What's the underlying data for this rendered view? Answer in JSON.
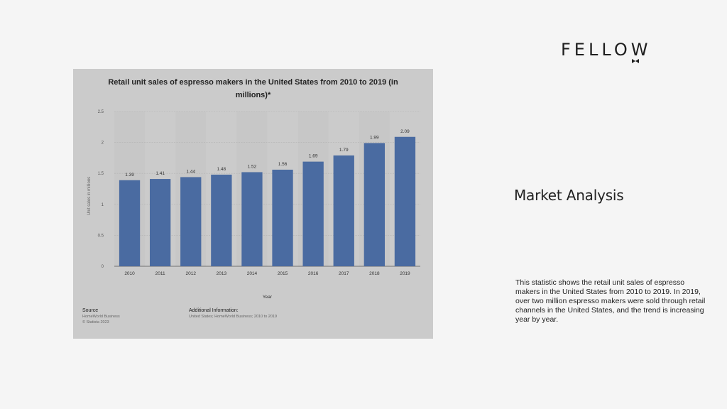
{
  "brand": {
    "name": "FELLOW"
  },
  "chart_data": {
    "type": "bar",
    "title": "Retail unit sales of espresso makers in the United States from 2010 to 2019 (in millions)*",
    "xlabel": "Year",
    "ylabel": "Unit sales in millions",
    "categories": [
      "2010",
      "2011",
      "2012",
      "2013",
      "2014",
      "2015",
      "2016",
      "2017",
      "2018",
      "2019"
    ],
    "values": [
      1.39,
      1.41,
      1.44,
      1.48,
      1.52,
      1.56,
      1.69,
      1.79,
      1.99,
      2.09
    ],
    "ylim": [
      0,
      2.5
    ],
    "yticks": [
      "0",
      "0.5",
      "1",
      "1.5",
      "2",
      "2.5"
    ],
    "grid": true,
    "bar_color": "#4a6ba1"
  },
  "footer": {
    "source_label": "Source",
    "source_lines": [
      "HomeWorld Business",
      "© Statista 2023"
    ],
    "info_label": "Additional Information:",
    "info_lines": [
      "United States; HomeWorld Business; 2010 to 2019"
    ]
  },
  "section": {
    "title": "Market Analysis",
    "description": "This statistic shows the retail unit sales of espresso makers in the United States from 2010 to 2019. In 2019, over two million espresso makers were sold through retail channels in the United States, and the trend is increasing year by year."
  }
}
